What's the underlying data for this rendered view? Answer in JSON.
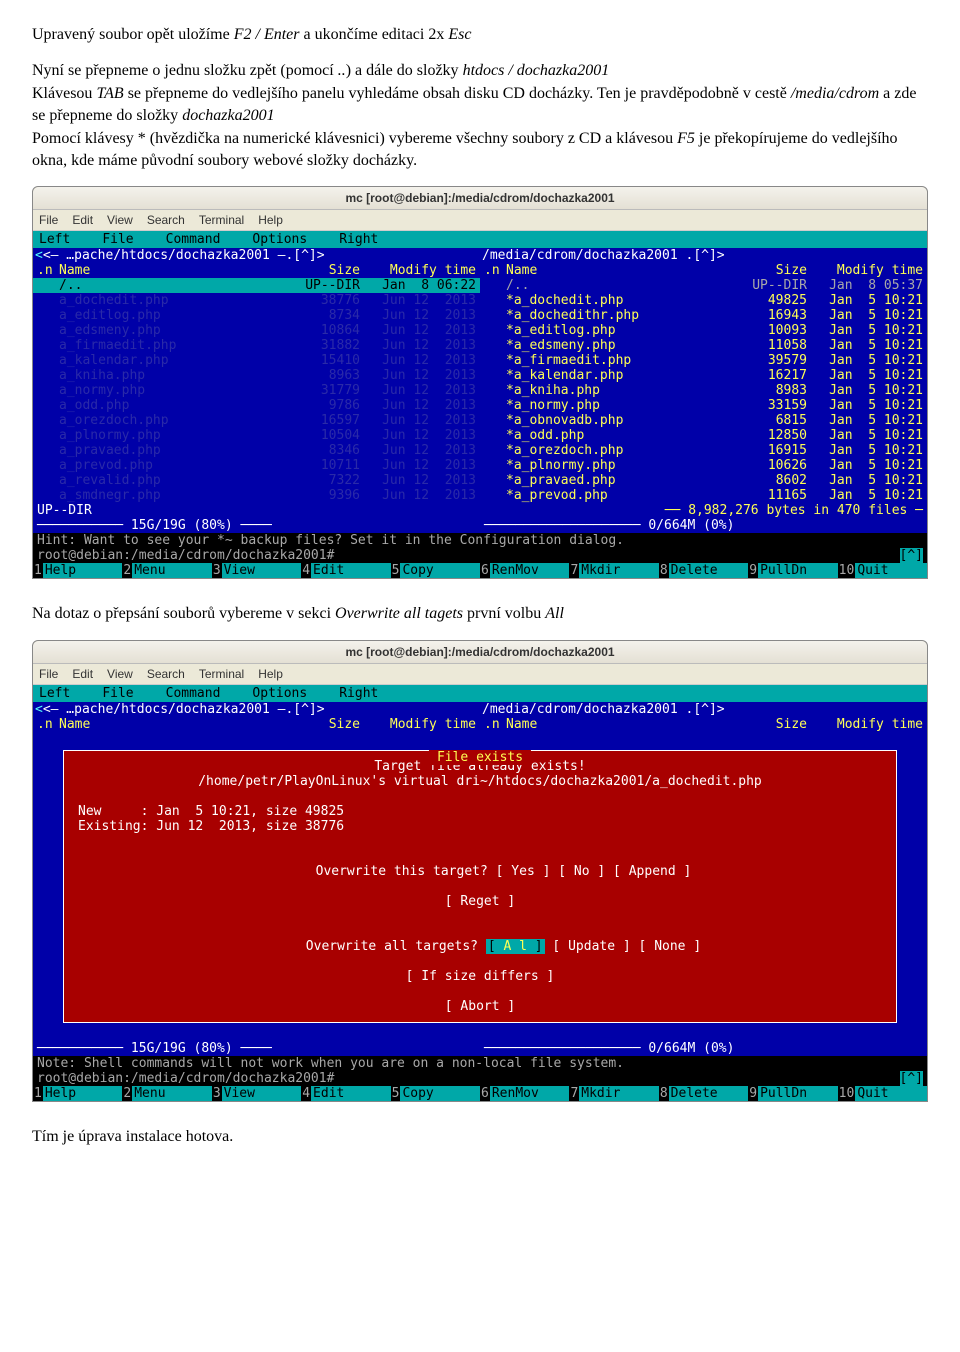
{
  "doc": {
    "p1_a": "Upravený soubor opět uložíme ",
    "p1_i1": "F2 / Enter",
    "p1_b": " a ukončíme editaci 2x ",
    "p1_i2": "Esc",
    "p2_a": "Nyní se přepneme o jednu složku zpět (pomocí ",
    "p2_i1": "..",
    "p2_b": ") a dále do složky ",
    "p2_i2": "htdocs / dochazka2001",
    "p3_a": "Klávesou ",
    "p3_i1": "TAB",
    "p3_b": " se přepneme do vedlejšího panelu vyhledáme obsah disku CD docházky. Ten je pravděpodobně v cestě ",
    "p3_i2": "/media/cdrom",
    "p3_c": " a zde se přepneme do složky ",
    "p3_i3": "dochazka2001",
    "p4_a": "Pomocí klávesy * (hvězdička na numerické klávesnici) vybereme všechny soubory z CD a klávesou ",
    "p4_i1": "F5",
    "p4_b": " je překopírujeme do vedlejšího okna, kde máme původní soubory webové složky docházky.",
    "p5_a": "Na dotaz o přepsání souborů vybereme v sekci ",
    "p5_i1": "Overwrite all tagets",
    "p5_b": " první volbu ",
    "p5_i2": "All",
    "p6": "Tím je úprava instalace hotova."
  },
  "term1": {
    "title": "mc [root@debian]:/media/cdrom/dochazka2001",
    "menu": [
      "File",
      "Edit",
      "View",
      "Search",
      "Terminal",
      "Help"
    ],
    "mctop": [
      "Left",
      "File",
      "Command",
      "Options",
      "Right"
    ],
    "left": {
      "path": "<– …pache/htdocs/dochazka2001 –.[^]>",
      "head": {
        "n": ".n",
        "name": "Name",
        "size": "Size",
        "mtime": "Modify time"
      },
      "updir": {
        "name": "/..",
        "size": "UP--DIR",
        "mtime": "Jan  8 06:22"
      },
      "rows": [
        {
          "name": "a_dochedit.php",
          "size": "38776",
          "mtime": "Jun 12  2013"
        },
        {
          "name": "a_editlog.php",
          "size": "8734",
          "mtime": "Jun 12  2013"
        },
        {
          "name": "a_edsmeny.php",
          "size": "10864",
          "mtime": "Jun 12  2013"
        },
        {
          "name": "a_firmaedit.php",
          "size": "31882",
          "mtime": "Jun 12  2013"
        },
        {
          "name": "a_kalendar.php",
          "size": "15410",
          "mtime": "Jun 12  2013"
        },
        {
          "name": "a_kniha.php",
          "size": "8963",
          "mtime": "Jun 12  2013"
        },
        {
          "name": "a_normy.php",
          "size": "31779",
          "mtime": "Jun 12  2013"
        },
        {
          "name": "a_odd.php",
          "size": "9786",
          "mtime": "Jun 12  2013"
        },
        {
          "name": "a_orezdoch.php",
          "size": "16597",
          "mtime": "Jun 12  2013"
        },
        {
          "name": "a_plnormy.php",
          "size": "10504",
          "mtime": "Jun 12  2013"
        },
        {
          "name": "a_pravaed.php",
          "size": "8346",
          "mtime": "Jun 12  2013"
        },
        {
          "name": "a_prevod.php",
          "size": "10711",
          "mtime": "Jun 12  2013"
        },
        {
          "name": "a_revalid.php",
          "size": "7322",
          "mtime": "Jun 12  2013"
        },
        {
          "name": "a_smdnegr.php",
          "size": "9396",
          "mtime": "Jun 12  2013"
        }
      ],
      "statusL": "UP--DIR",
      "gauge": "─────────── 15G/19G (80%) ────"
    },
    "right": {
      "path": "  /media/cdrom/dochazka2001         .[^]>",
      "head": {
        "n": ".n",
        "name": "Name",
        "size": "Size",
        "mtime": "Modify time"
      },
      "updir": {
        "name": "/..",
        "size": "UP--DIR",
        "mtime": "Jan  8 05:37"
      },
      "rows": [
        {
          "name": "*a_dochedit.php",
          "size": "49825",
          "mtime": "Jan  5 10:21"
        },
        {
          "name": "*a_dochedithr.php",
          "size": "16943",
          "mtime": "Jan  5 10:21"
        },
        {
          "name": "*a_editlog.php",
          "size": "10093",
          "mtime": "Jan  5 10:21"
        },
        {
          "name": "*a_edsmeny.php",
          "size": "11058",
          "mtime": "Jan  5 10:21"
        },
        {
          "name": "*a_firmaedit.php",
          "size": "39579",
          "mtime": "Jan  5 10:21"
        },
        {
          "name": "*a_kalendar.php",
          "size": "16217",
          "mtime": "Jan  5 10:21"
        },
        {
          "name": "*a_kniha.php",
          "size": "8983",
          "mtime": "Jan  5 10:21"
        },
        {
          "name": "*a_normy.php",
          "size": "33159",
          "mtime": "Jan  5 10:21"
        },
        {
          "name": "*a_obnovadb.php",
          "size": "6815",
          "mtime": "Jan  5 10:21"
        },
        {
          "name": "*a_odd.php",
          "size": "12850",
          "mtime": "Jan  5 10:21"
        },
        {
          "name": "*a_orezdoch.php",
          "size": "16915",
          "mtime": "Jan  5 10:21"
        },
        {
          "name": "*a_plnormy.php",
          "size": "10626",
          "mtime": "Jan  5 10:21"
        },
        {
          "name": "*a_pravaed.php",
          "size": "8602",
          "mtime": "Jan  5 10:21"
        },
        {
          "name": "*a_prevod.php",
          "size": "11165",
          "mtime": "Jan  5 10:21"
        }
      ],
      "footer": "── 8,982,276 bytes in 470 files ─",
      "gauge": "──────────────────── 0/664M (0%) "
    },
    "hint": "Hint: Want to see your *~ backup files? Set it in the Configuration dialog.",
    "prompt": "root@debian:/media/cdrom/dochazka2001# ",
    "promptR": "[^]",
    "fkeys": [
      [
        "1",
        "Help"
      ],
      [
        "2",
        "Menu"
      ],
      [
        "3",
        "View"
      ],
      [
        "4",
        "Edit"
      ],
      [
        "5",
        "Copy"
      ],
      [
        "6",
        "RenMov"
      ],
      [
        "7",
        "Mkdir"
      ],
      [
        "8",
        "Delete"
      ],
      [
        "9",
        "PullDn"
      ],
      [
        "10",
        "Quit"
      ]
    ]
  },
  "term2": {
    "title": "mc [root@debian]:/media/cdrom/dochazka2001",
    "menu": [
      "File",
      "Edit",
      "View",
      "Search",
      "Terminal",
      "Help"
    ],
    "mctop": [
      "Left",
      "File",
      "Command",
      "Options",
      "Right"
    ],
    "leftpath": "<– …pache/htdocs/dochazka2001 –.[^]>",
    "rightpath": "  /media/cdrom/dochazka2001         .[^]>",
    "head": {
      "n": ".n",
      "name": "Name",
      "size": "Size",
      "mtime": "Modify time"
    },
    "dialog": {
      "title": " File exists ",
      "l1": "Target file already exists!",
      "l2": "/home/petr/PlayOnLinux's virtual dri~/htdocs/dochazka2001/a_dochedit.php",
      "new": "New     : Jan  5 10:21, size 49825",
      "exist": "Existing: Jun 12  2013, size 38776",
      "ot": "Overwrite this target?",
      "ot_b": [
        "Yes",
        "No",
        "Append"
      ],
      "reget": "Reget",
      "oa": "Overwrite all targets?",
      "oa_b": [
        "A l",
        "Update",
        "None"
      ],
      "ifsize": "If size differs",
      "abort": "Abort"
    },
    "gaugeL": "─────────── 15G/19G (80%) ────",
    "gaugeR": "──────────────────── 0/664M (0%) ",
    "hint": "Note: Shell commands will not work when you are on a non-local file system.",
    "prompt": "root@debian:/media/cdrom/dochazka2001# ",
    "promptR": "[^]",
    "fkeys": [
      [
        "1",
        "Help"
      ],
      [
        "2",
        "Menu"
      ],
      [
        "3",
        "View"
      ],
      [
        "4",
        "Edit"
      ],
      [
        "5",
        "Copy"
      ],
      [
        "6",
        "RenMov"
      ],
      [
        "7",
        "Mkdir"
      ],
      [
        "8",
        "Delete"
      ],
      [
        "9",
        "PullDn"
      ],
      [
        "10",
        "Quit"
      ]
    ]
  }
}
